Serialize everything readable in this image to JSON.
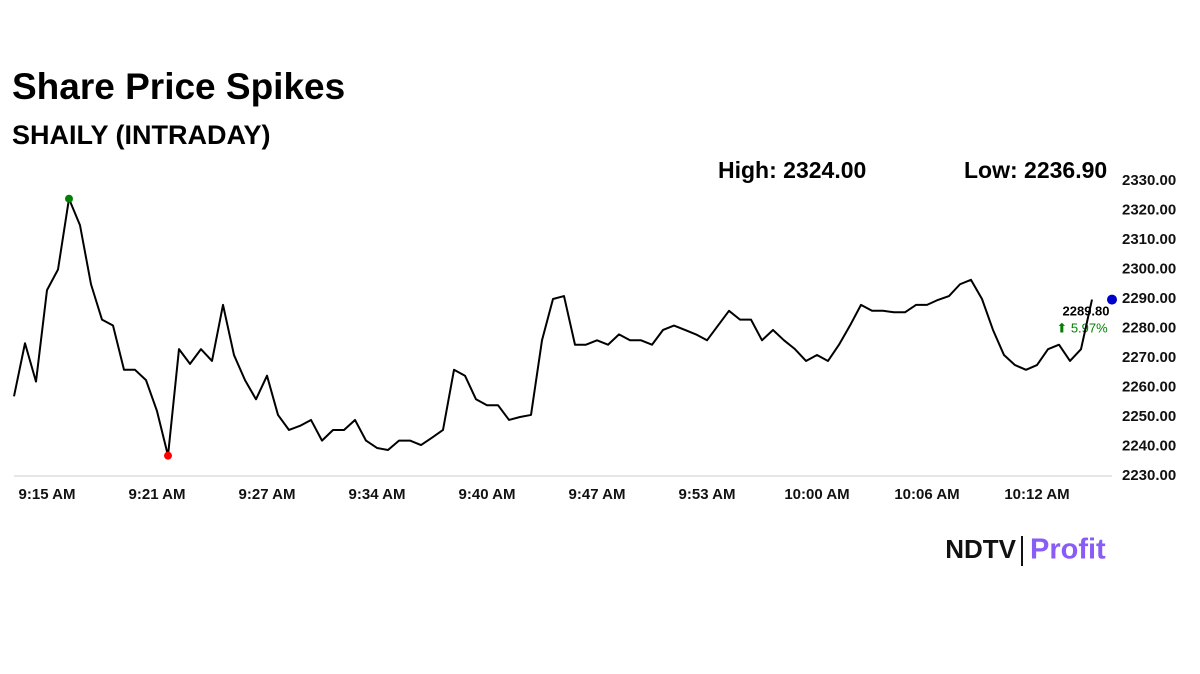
{
  "chart_data": {
    "type": "line",
    "title": "Share Price Spikes",
    "subtitle": "SHAILY (INTRADAY)",
    "annotations": {
      "high": "High: 2324.00",
      "low": "Low: 2236.90",
      "last": "2289.80",
      "change": "⬆ 5.97%"
    },
    "brand": {
      "name": "NDTV",
      "product": "Profit"
    },
    "categories": [
      null,
      null,
      null,
      "9:15 AM",
      null,
      null,
      null,
      null,
      null,
      null,
      null,
      null,
      null,
      "9:21 AM",
      null,
      null,
      null,
      null,
      null,
      null,
      null,
      null,
      null,
      "9:27 AM",
      null,
      null,
      null,
      null,
      null,
      null,
      null,
      null,
      null,
      "9:34 AM",
      null,
      null,
      null,
      null,
      null,
      null,
      null,
      null,
      null,
      "9:40 AM",
      null,
      null,
      null,
      null,
      null,
      null,
      null,
      null,
      null,
      "9:47 AM",
      null,
      null,
      null,
      null,
      null,
      null,
      null,
      null,
      null,
      "9:53 AM",
      null,
      null,
      null,
      null,
      null,
      null,
      null,
      null,
      null,
      "10:00 AM",
      null,
      null,
      null,
      null,
      null,
      null,
      null,
      null,
      null,
      "10:06 AM",
      null,
      null,
      null,
      null,
      null,
      null,
      null,
      null,
      null,
      "10:12 AM",
      null,
      null,
      null,
      null,
      null
    ],
    "series": [
      {
        "name": "SHAILY",
        "color": "#000000",
        "values": [
          2257,
          2275,
          2262,
          2293,
          2300,
          2324,
          2315,
          2295,
          2283,
          2281,
          2266,
          2266,
          2262.5,
          2252,
          2236.9,
          2273,
          2268,
          2273,
          2269,
          2288,
          2271,
          2262.5,
          2256,
          2264,
          2250.7,
          2245.6,
          2247,
          2249,
          2242,
          2245.6,
          2245.6,
          2249,
          2242,
          2239.5,
          2238.8,
          2242,
          2242,
          2240.5,
          2243,
          2245.6,
          2266,
          2264,
          2256,
          2254,
          2254,
          2249,
          2250,
          2250.7,
          2276,
          2290,
          2291,
          2274.5,
          2274.5,
          2276,
          2274.5,
          2278,
          2276,
          2276,
          2274.5,
          2279.5,
          2281,
          2279.5,
          2278,
          2276,
          2281,
          2286,
          2283,
          2283,
          2276,
          2279.5,
          2276,
          2273,
          2269,
          2271,
          2269,
          2274.5,
          2281,
          2288,
          2286,
          2286,
          2285.5,
          2285.5,
          2288,
          2288,
          2289.7,
          2291,
          2295,
          2296.5,
          2290,
          2279.5,
          2271,
          2267.6,
          2266,
          2267.6,
          2273,
          2274.5,
          2269,
          2273,
          2289.8
        ]
      }
    ],
    "high_color": "#008000",
    "low_color": "#ff0000",
    "last_color": "#0000cc",
    "ylim": [
      2230,
      2330
    ],
    "yticks": [
      {
        "value": 2230,
        "label": "2230.00"
      },
      {
        "value": 2240,
        "label": "2240.00"
      },
      {
        "value": 2250,
        "label": "2250.00"
      },
      {
        "value": 2260,
        "label": "2260.00"
      },
      {
        "value": 2270,
        "label": "2270.00"
      },
      {
        "value": 2280,
        "label": "2280.00"
      },
      {
        "value": 2290,
        "label": "2290.00"
      },
      {
        "value": 2300,
        "label": "2300.00"
      },
      {
        "value": 2310,
        "label": "2310.00"
      },
      {
        "value": 2320,
        "label": "2320.00"
      },
      {
        "value": 2330,
        "label": "2330.00"
      }
    ],
    "grid": false
  }
}
